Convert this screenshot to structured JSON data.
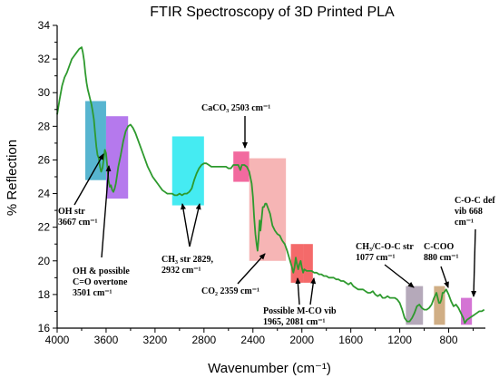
{
  "chart_data": {
    "type": "line",
    "title": "FTIR Spectroscopy of 3D Printed PLA",
    "xlabel": "Wavenumber (cm⁻¹)",
    "ylabel": "% Reflection",
    "xlim": [
      4000,
      500
    ],
    "ylim": [
      16,
      34
    ],
    "x_reversed": true,
    "xticks": [
      4000,
      3600,
      3200,
      2800,
      2400,
      2000,
      1600,
      1200,
      800
    ],
    "yticks": [
      16,
      18,
      20,
      22,
      24,
      26,
      28,
      30,
      32,
      34
    ],
    "grid": false,
    "line_color": "#2e9a2e",
    "series": [
      {
        "values": [
          [
            4000,
            28.7
          ],
          [
            3980,
            29.6
          ],
          [
            3960,
            30.4
          ],
          [
            3940,
            30.9
          ],
          [
            3920,
            31.2
          ],
          [
            3900,
            31.6
          ],
          [
            3880,
            32.0
          ],
          [
            3860,
            32.2
          ],
          [
            3840,
            32.4
          ],
          [
            3820,
            32.6
          ],
          [
            3800,
            32.7
          ],
          [
            3790,
            32.4
          ],
          [
            3780,
            31.9
          ],
          [
            3770,
            31.2
          ],
          [
            3760,
            30.6
          ],
          [
            3750,
            30.2
          ],
          [
            3740,
            29.9
          ],
          [
            3730,
            29.6
          ],
          [
            3720,
            29.3
          ],
          [
            3710,
            28.9
          ],
          [
            3700,
            28.4
          ],
          [
            3690,
            27.6
          ],
          [
            3680,
            26.8
          ],
          [
            3670,
            26.3
          ],
          [
            3660,
            26.1
          ],
          [
            3650,
            25.6
          ],
          [
            3640,
            25.3
          ],
          [
            3630,
            25.5
          ],
          [
            3620,
            26.0
          ],
          [
            3610,
            26.6
          ],
          [
            3600,
            26.4
          ],
          [
            3590,
            25.6
          ],
          [
            3580,
            24.8
          ],
          [
            3570,
            24.4
          ],
          [
            3560,
            24.5
          ],
          [
            3550,
            24.2
          ],
          [
            3540,
            24.1
          ],
          [
            3530,
            24.3
          ],
          [
            3520,
            24.6
          ],
          [
            3510,
            25.1
          ],
          [
            3500,
            25.6
          ],
          [
            3480,
            26.3
          ],
          [
            3460,
            27.1
          ],
          [
            3440,
            27.7
          ],
          [
            3420,
            28.0
          ],
          [
            3400,
            28.1
          ],
          [
            3380,
            27.9
          ],
          [
            3360,
            27.6
          ],
          [
            3340,
            27.2
          ],
          [
            3320,
            26.8
          ],
          [
            3300,
            26.4
          ],
          [
            3280,
            26.0
          ],
          [
            3260,
            25.6
          ],
          [
            3240,
            25.3
          ],
          [
            3220,
            25.0
          ],
          [
            3200,
            24.8
          ],
          [
            3180,
            24.6
          ],
          [
            3160,
            24.4
          ],
          [
            3140,
            24.2
          ],
          [
            3120,
            24.1
          ],
          [
            3100,
            24.0
          ],
          [
            3080,
            24.0
          ],
          [
            3060,
            24.0
          ],
          [
            3040,
            23.9
          ],
          [
            3020,
            23.9
          ],
          [
            3000,
            24.0
          ],
          [
            2980,
            23.9
          ],
          [
            2960,
            24.0
          ],
          [
            2940,
            24.0
          ],
          [
            2920,
            24.1
          ],
          [
            2900,
            24.3
          ],
          [
            2880,
            24.8
          ],
          [
            2860,
            25.2
          ],
          [
            2840,
            25.5
          ],
          [
            2820,
            25.7
          ],
          [
            2800,
            25.8
          ],
          [
            2780,
            25.8
          ],
          [
            2760,
            25.7
          ],
          [
            2740,
            25.6
          ],
          [
            2720,
            25.6
          ],
          [
            2700,
            25.6
          ],
          [
            2680,
            25.6
          ],
          [
            2660,
            25.6
          ],
          [
            2640,
            25.6
          ],
          [
            2620,
            25.6
          ],
          [
            2600,
            25.5
          ],
          [
            2580,
            25.5
          ],
          [
            2560,
            25.7
          ],
          [
            2540,
            25.7
          ],
          [
            2520,
            25.7
          ],
          [
            2503,
            25.4
          ],
          [
            2490,
            25.7
          ],
          [
            2470,
            25.7
          ],
          [
            2450,
            25.6
          ],
          [
            2430,
            25.3
          ],
          [
            2410,
            24.6
          ],
          [
            2400,
            23.8
          ],
          [
            2390,
            22.6
          ],
          [
            2380,
            21.6
          ],
          [
            2370,
            21.0
          ],
          [
            2362,
            20.6
          ],
          [
            2355,
            21.2
          ],
          [
            2345,
            22.4
          ],
          [
            2338,
            21.8
          ],
          [
            2330,
            22.4
          ],
          [
            2320,
            23.2
          ],
          [
            2310,
            23.2
          ],
          [
            2300,
            23.4
          ],
          [
            2290,
            23.4
          ],
          [
            2280,
            23.2
          ],
          [
            2260,
            22.8
          ],
          [
            2240,
            22.1
          ],
          [
            2220,
            21.8
          ],
          [
            2200,
            21.6
          ],
          [
            2180,
            21.5
          ],
          [
            2160,
            21.2
          ],
          [
            2140,
            21.0
          ],
          [
            2120,
            20.6
          ],
          [
            2100,
            20.1
          ],
          [
            2080,
            19.6
          ],
          [
            2070,
            19.3
          ],
          [
            2060,
            19.6
          ],
          [
            2050,
            20.2
          ],
          [
            2040,
            19.8
          ],
          [
            2030,
            19.5
          ],
          [
            2020,
            19.8
          ],
          [
            2010,
            20.0
          ],
          [
            2000,
            19.6
          ],
          [
            1990,
            19.3
          ],
          [
            1980,
            19.5
          ],
          [
            1960,
            19.4
          ],
          [
            1940,
            19.4
          ],
          [
            1920,
            19.4
          ],
          [
            1900,
            19.3
          ],
          [
            1880,
            19.3
          ],
          [
            1860,
            19.2
          ],
          [
            1840,
            19.2
          ],
          [
            1820,
            19.1
          ],
          [
            1800,
            19.1
          ],
          [
            1780,
            19.0
          ],
          [
            1760,
            19.0
          ],
          [
            1740,
            19.0
          ],
          [
            1720,
            18.9
          ],
          [
            1700,
            18.9
          ],
          [
            1680,
            18.8
          ],
          [
            1660,
            18.8
          ],
          [
            1640,
            18.7
          ],
          [
            1620,
            18.6
          ],
          [
            1600,
            18.7
          ],
          [
            1580,
            18.5
          ],
          [
            1560,
            18.4
          ],
          [
            1540,
            18.3
          ],
          [
            1520,
            18.3
          ],
          [
            1500,
            18.3
          ],
          [
            1480,
            18.2
          ],
          [
            1460,
            18.1
          ],
          [
            1440,
            18.1
          ],
          [
            1420,
            18.2
          ],
          [
            1400,
            18.0
          ],
          [
            1380,
            17.9
          ],
          [
            1360,
            18.0
          ],
          [
            1340,
            17.8
          ],
          [
            1320,
            17.8
          ],
          [
            1300,
            17.9
          ],
          [
            1280,
            17.8
          ],
          [
            1260,
            17.8
          ],
          [
            1240,
            17.8
          ],
          [
            1220,
            17.7
          ],
          [
            1200,
            17.5
          ],
          [
            1180,
            17.1
          ],
          [
            1160,
            16.6
          ],
          [
            1140,
            16.4
          ],
          [
            1120,
            16.4
          ],
          [
            1100,
            16.6
          ],
          [
            1080,
            16.9
          ],
          [
            1060,
            17.3
          ],
          [
            1040,
            17.4
          ],
          [
            1020,
            17.2
          ],
          [
            1000,
            17.1
          ],
          [
            980,
            17.1
          ],
          [
            960,
            17.2
          ],
          [
            940,
            17.4
          ],
          [
            920,
            17.8
          ],
          [
            900,
            18.1
          ],
          [
            880,
            17.5
          ],
          [
            870,
            17.5
          ],
          [
            860,
            17.7
          ],
          [
            850,
            18.1
          ],
          [
            840,
            18.1
          ],
          [
            820,
            18.3
          ],
          [
            800,
            18.0
          ],
          [
            780,
            17.6
          ],
          [
            760,
            17.3
          ],
          [
            740,
            17.4
          ],
          [
            720,
            17.2
          ],
          [
            700,
            16.9
          ],
          [
            680,
            16.6
          ],
          [
            668,
            16.3
          ],
          [
            650,
            16.5
          ],
          [
            630,
            16.6
          ],
          [
            610,
            16.7
          ],
          [
            590,
            16.8
          ],
          [
            570,
            16.9
          ],
          [
            550,
            17.0
          ],
          [
            530,
            17.0
          ],
          [
            510,
            17.1
          ]
        ]
      }
    ],
    "highlight_regions": [
      {
        "x0": 3770,
        "x1": 3600,
        "y0": 24.8,
        "y1": 29.5,
        "color": "#3aa8c8"
      },
      {
        "x0": 3600,
        "x1": 3420,
        "y0": 23.7,
        "y1": 28.6,
        "color": "#a862ea"
      },
      {
        "x0": 3060,
        "x1": 2800,
        "y0": 23.3,
        "y1": 27.4,
        "color": "#24e8f0"
      },
      {
        "x0": 2560,
        "x1": 2430,
        "y0": 24.7,
        "y1": 26.5,
        "color": "#f0508e"
      },
      {
        "x0": 2430,
        "x1": 2130,
        "y0": 20.0,
        "y1": 26.1,
        "color": "#f4a8a8"
      },
      {
        "x0": 2090,
        "x1": 1990,
        "y0": 18.7,
        "y1": 21.0,
        "color": "#f25050"
      },
      {
        "x0": 1990,
        "x1": 1910,
        "y0": 18.7,
        "y1": 21.0,
        "color": "#f25050"
      },
      {
        "x0": 1150,
        "x1": 1010,
        "y0": 16.2,
        "y1": 18.5,
        "color": "#a89aae"
      },
      {
        "x0": 920,
        "x1": 830,
        "y0": 16.2,
        "y1": 18.5,
        "color": "#c8a070"
      },
      {
        "x0": 700,
        "x1": 610,
        "y0": 16.2,
        "y1": 17.8,
        "color": "#cc5ccc"
      }
    ],
    "annotations": [
      {
        "lines": [
          "OH  str",
          "3667 cm⁻¹"
        ]
      },
      {
        "lines": [
          "OH & possible",
          "C=O overtone",
          "3501 cm⁻¹"
        ]
      },
      {
        "lines": [
          "CH₃ str 2829,",
          "2932 cm⁻¹"
        ]
      },
      {
        "lines": [
          "CaCO₃ 2503  cm⁻¹"
        ]
      },
      {
        "lines": [
          "CO₂ 2359 cm⁻¹"
        ]
      },
      {
        "lines": [
          "Possible M-CO vib",
          "1965, 2081 cm⁻¹"
        ]
      },
      {
        "lines": [
          "CH₃/C-O-C  str",
          "1077 cm⁻¹"
        ]
      },
      {
        "lines": [
          "C-COO",
          "880 cm⁻¹"
        ]
      },
      {
        "lines": [
          "C-O-C  def",
          "vib 668",
          "cm⁻¹"
        ]
      }
    ]
  }
}
